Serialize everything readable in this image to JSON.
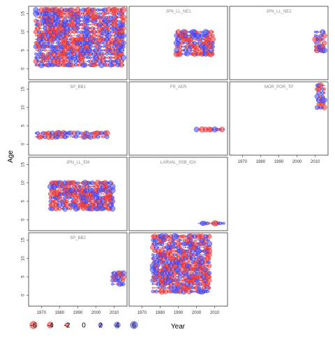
{
  "chart_data": {
    "type": "scatter",
    "subtype": "bubble-residual-facets",
    "ylabel": "Age",
    "xlabel": "Year",
    "xlim": [
      1963,
      2017
    ],
    "ylim": [
      -3,
      17
    ],
    "x_ticks": [
      1970,
      1980,
      1990,
      2000,
      2010
    ],
    "y_ticks": [
      0,
      5,
      10,
      15
    ],
    "colors": {
      "positive": "#4444ee",
      "negative": "#ee3333"
    },
    "legend": {
      "placement": "bottom-left",
      "values": [
        -6,
        -4,
        -2,
        0,
        2,
        4,
        6
      ],
      "labels": [
        "-6",
        "-4",
        "-2",
        "0",
        "2",
        "4",
        "6"
      ]
    },
    "panels": [
      {
        "title": "",
        "years": [
          1967,
          2015
        ],
        "ages": [
          1,
          16
        ]
      },
      {
        "title": "JPN_LL_NE1",
        "years": [
          1989,
          2009
        ],
        "ages": [
          4,
          10
        ]
      },
      {
        "title": "JPN_LL_NE2",
        "years": [
          2010,
          2015
        ],
        "ages": [
          5,
          10
        ]
      },
      {
        "title": "SP_BB1",
        "years": [
          1967,
          2006
        ],
        "ages": [
          2,
          3
        ]
      },
      {
        "title": "FR_AER",
        "years": [
          2000,
          2015
        ],
        "ages": [
          4,
          4
        ]
      },
      {
        "title": "MOR_POR_TP",
        "years": [
          2011,
          2015
        ],
        "ages": [
          10,
          16
        ]
      },
      {
        "title": "JPN_LL_EM",
        "years": [
          1975,
          2009
        ],
        "ages": [
          3,
          10
        ]
      },
      {
        "title": "LARVAL_SSB_IDX",
        "years": [
          2001,
          2015
        ],
        "ages": [
          -1,
          -1
        ]
      },
      {
        "title": "SP_BB2",
        "years": [
          2009,
          2015
        ],
        "ages": [
          3,
          6
        ]
      },
      {
        "title": "",
        "years": [
          1976,
          2007
        ],
        "ages": [
          1,
          16
        ]
      }
    ],
    "grid": false
  }
}
